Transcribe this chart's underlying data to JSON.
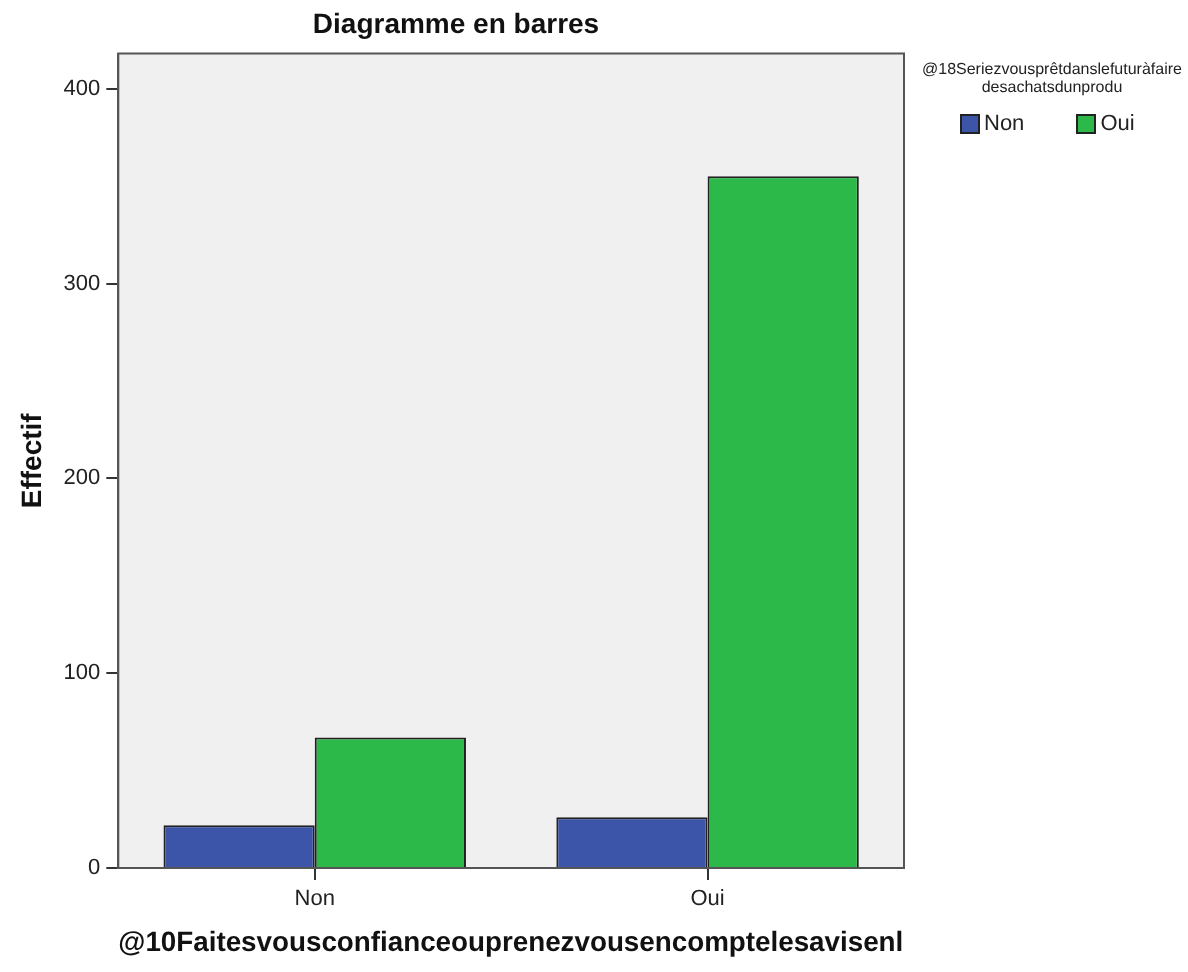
{
  "chart_data": {
    "type": "bar",
    "title": "Diagramme en barres",
    "xlabel": "@10Faitesvousconfianceouprenezvousencomptelesavisenl",
    "ylabel": "Effectif",
    "legend_title": "@18Seriezvousprêtdanslefuturàfairedesachatsdunprodu",
    "categories": [
      "Non",
      "Oui"
    ],
    "series": [
      {
        "name": "Non",
        "color": "#3d55a8",
        "values": [
          22,
          26
        ]
      },
      {
        "name": "Oui",
        "color": "#2db84a",
        "values": [
          67,
          355
        ]
      }
    ],
    "ylim": [
      0,
      418
    ],
    "yticks": [
      0,
      100,
      200,
      300,
      400
    ],
    "grid": false,
    "legend": "top right"
  }
}
